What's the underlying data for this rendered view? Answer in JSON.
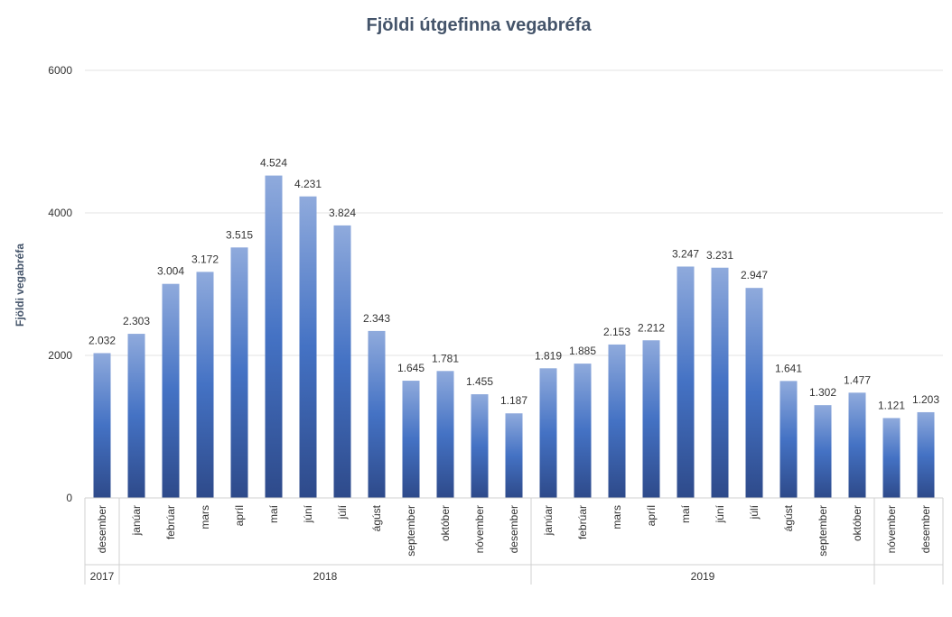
{
  "chart_data": {
    "type": "bar",
    "title": "Fjöldi útgefinna vegabréfa",
    "xlabel": "",
    "ylabel": "Fjöldi vegabréfa",
    "ylim": [
      0,
      6000
    ],
    "yticks": [
      "0",
      "2000",
      "4000",
      "6000"
    ],
    "grid": true,
    "legend": "none",
    "bar_color": "#4472c4",
    "bar_color_dark": "#2e4a8a",
    "bar_color_light": "#8faadc",
    "groups": [
      {
        "year": "2017",
        "categories": [
          "desember"
        ]
      },
      {
        "year": "2018",
        "categories": [
          "janúar",
          "febrúar",
          "mars",
          "apríl",
          "maí",
          "júní",
          "júlí",
          "ágúst",
          "september",
          "október",
          "nóvember",
          "desember"
        ]
      },
      {
        "year": "2019",
        "categories": [
          "janúar",
          "febrúar",
          "mars",
          "apríl",
          "maí",
          "júní",
          "júlí",
          "ágúst",
          "september",
          "október"
        ]
      },
      {
        "year": "",
        "categories": [
          "nóvember",
          "desember"
        ]
      }
    ],
    "categories": [
      "desember",
      "janúar",
      "febrúar",
      "mars",
      "apríl",
      "maí",
      "júní",
      "júlí",
      "ágúst",
      "september",
      "október",
      "nóvember",
      "desember",
      "janúar",
      "febrúar",
      "mars",
      "apríl",
      "maí",
      "júní",
      "júlí",
      "ágúst",
      "september",
      "október",
      "nóvember",
      "desember"
    ],
    "values": [
      2032,
      2303,
      3004,
      3172,
      3515,
      4524,
      4231,
      3824,
      2343,
      1645,
      1781,
      1455,
      1187,
      1819,
      1885,
      2153,
      2212,
      3247,
      3231,
      2947,
      1641,
      1302,
      1477,
      1121,
      1203
    ],
    "value_labels": [
      "2.032",
      "2.303",
      "3.004",
      "3.172",
      "3.515",
      "4.524",
      "4.231",
      "3.824",
      "2.343",
      "1.645",
      "1.781",
      "1.455",
      "1.187",
      "1.819",
      "1.885",
      "2.153",
      "2.212",
      "3.247",
      "3.231",
      "2.947",
      "1.641",
      "1.302",
      "1.477",
      "1.121",
      "1.203"
    ]
  }
}
